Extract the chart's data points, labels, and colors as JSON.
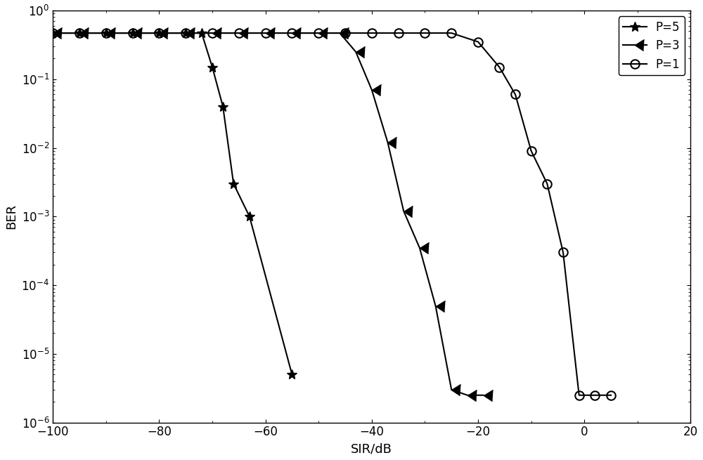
{
  "title": "",
  "xlabel": "SIR/dB",
  "ylabel": "BER",
  "xlim": [
    -100,
    20
  ],
  "ylim_log": [
    1e-06,
    1
  ],
  "xticks": [
    -100,
    -80,
    -60,
    -40,
    -20,
    0,
    20
  ],
  "series": [
    {
      "label": "P=5",
      "marker": "*",
      "markersize": 10,
      "color": "#000000",
      "markerfacecolor": "black",
      "x": [
        -100,
        -95,
        -90,
        -85,
        -80,
        -75,
        -72,
        -70,
        -68,
        -66,
        -63,
        -55
      ],
      "y": [
        0.47,
        0.47,
        0.47,
        0.47,
        0.47,
        0.47,
        0.47,
        0.15,
        0.04,
        0.003,
        0.001,
        5e-06
      ]
    },
    {
      "label": "P=3",
      "marker": "3",
      "markersize": 12,
      "color": "#000000",
      "markerfacecolor": "none",
      "x": [
        -100,
        -95,
        -90,
        -85,
        -80,
        -75,
        -70,
        -65,
        -60,
        -55,
        -50,
        -46,
        -43,
        -40,
        -37,
        -34,
        -31,
        -28,
        -25,
        -22,
        -19
      ],
      "y": [
        0.47,
        0.47,
        0.47,
        0.47,
        0.47,
        0.47,
        0.47,
        0.47,
        0.47,
        0.47,
        0.47,
        0.47,
        0.25,
        0.07,
        0.012,
        0.0012,
        0.00035,
        5e-05,
        3e-06,
        2.5e-06,
        2.5e-06
      ]
    },
    {
      "label": "P=1",
      "marker": "o",
      "markersize": 9,
      "color": "#000000",
      "markerfacecolor": "none",
      "x": [
        -100,
        -95,
        -90,
        -85,
        -80,
        -75,
        -70,
        -65,
        -60,
        -55,
        -50,
        -45,
        -40,
        -35,
        -30,
        -25,
        -20,
        -16,
        -13,
        -10,
        -7,
        -4,
        -1,
        2,
        5
      ],
      "y": [
        0.47,
        0.47,
        0.47,
        0.47,
        0.47,
        0.47,
        0.47,
        0.47,
        0.47,
        0.47,
        0.47,
        0.47,
        0.47,
        0.47,
        0.47,
        0.47,
        0.35,
        0.15,
        0.06,
        0.009,
        0.003,
        0.0003,
        2.5e-06,
        2.5e-06,
        2.5e-06
      ]
    }
  ],
  "background_color": "#ffffff",
  "legend_fontsize": 12,
  "axis_fontsize": 13,
  "tick_fontsize": 12,
  "linewidth": 1.5
}
